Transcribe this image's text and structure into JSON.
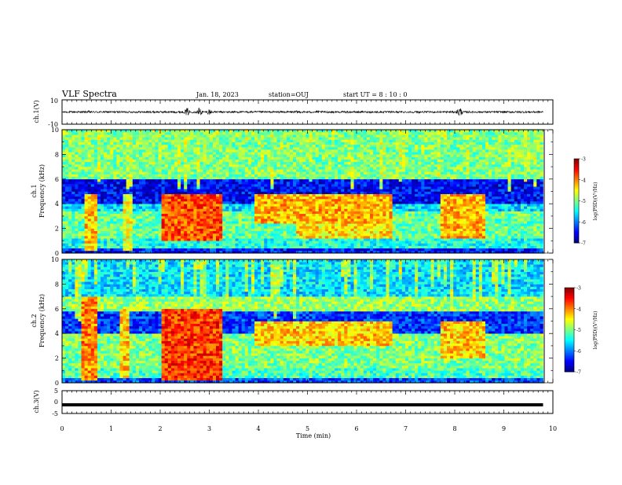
{
  "chart_data": {
    "type": "heatmap",
    "header": {
      "title": "VLF Spectra",
      "date": "Jan. 18, 2023",
      "station": "station=OUJ",
      "start_ut": "start UT =  8 : 10 : 0"
    },
    "x_axis": {
      "label": "Time  (min)",
      "min": 0,
      "max": 10,
      "ticks": [
        "0",
        "1",
        "2",
        "3",
        "4",
        "5",
        "6",
        "7",
        "8",
        "9",
        "10"
      ],
      "data_end": 9.8
    },
    "panels": [
      {
        "id": "ch1-waveform",
        "type": "line",
        "ylabel": "ch.1(V)",
        "ylim": [
          -10,
          10
        ],
        "ticks": [
          "10",
          "-10"
        ],
        "baseline": 0,
        "bursts": [
          {
            "t": 0.55,
            "amp": 1.3
          },
          {
            "t": 1.55,
            "amp": 0.7
          },
          {
            "t": 2.55,
            "amp": 3.8
          },
          {
            "t": 2.8,
            "amp": 4.8
          },
          {
            "t": 3.0,
            "amp": 3.0
          },
          {
            "t": 4.8,
            "amp": 1.6
          },
          {
            "t": 5.2,
            "amp": 1.4
          },
          {
            "t": 6.0,
            "amp": 1.1
          },
          {
            "t": 8.1,
            "amp": 5.0
          },
          {
            "t": 9.0,
            "amp": 1.2
          }
        ]
      },
      {
        "id": "ch1-spectrogram",
        "type": "heatmap",
        "label": "ch.1",
        "ylabel": "Frequency  (kHz)",
        "ylim": [
          0,
          10
        ],
        "ticks": [
          "0",
          "2",
          "4",
          "6",
          "8",
          "10"
        ],
        "colorbar": {
          "label": "log(PSD)(V²/Hz)",
          "min": -7,
          "max": -3,
          "ticks": [
            "-3",
            "-4",
            "-5",
            "-6",
            "-7"
          ]
        },
        "bands": [
          {
            "f0": 0,
            "f1": 0.5,
            "level": -6.4
          },
          {
            "f0": 0.5,
            "f1": 1.3,
            "level": -5.4
          },
          {
            "f0": 1.3,
            "f1": 3.5,
            "level": -5.1
          },
          {
            "f0": 3.5,
            "f1": 4.0,
            "level": -5.6
          },
          {
            "f0": 4.0,
            "f1": 6.0,
            "level": -6.5
          },
          {
            "f0": 6.0,
            "f1": 10.0,
            "level": -5.0
          }
        ],
        "enhanced": [
          {
            "t0": 0.45,
            "t1": 0.75,
            "f0": 0.3,
            "f1": 4.8,
            "level": -4.3
          },
          {
            "t0": 1.25,
            "t1": 1.45,
            "f0": 0.3,
            "f1": 4.8,
            "level": -4.6
          },
          {
            "t0": 2.0,
            "t1": 3.25,
            "f0": 1.0,
            "f1": 4.8,
            "level": -3.8
          },
          {
            "t0": 3.9,
            "t1": 6.7,
            "f0": 2.5,
            "f1": 4.8,
            "level": -4.2
          },
          {
            "t0": 4.8,
            "t1": 6.7,
            "f0": 1.2,
            "f1": 2.4,
            "level": -4.4
          },
          {
            "t0": 7.7,
            "t1": 8.65,
            "f0": 1.3,
            "f1": 4.8,
            "level": -4.2
          }
        ]
      },
      {
        "id": "ch2-spectrogram",
        "type": "heatmap",
        "label": "ch.2",
        "ylabel": "Frequency  (kHz)",
        "ylim": [
          0,
          10
        ],
        "ticks": [
          "0",
          "2",
          "4",
          "6",
          "8",
          "10"
        ],
        "colorbar": {
          "label": "log(PSD)(V²/Hz)",
          "min": -7,
          "max": -3,
          "ticks": [
            "-3",
            "-4",
            "-5",
            "-6",
            "-7"
          ]
        },
        "bands": [
          {
            "f0": 0,
            "f1": 0.5,
            "level": -6.2
          },
          {
            "f0": 0.5,
            "f1": 1.3,
            "level": -5.2
          },
          {
            "f0": 1.3,
            "f1": 4.0,
            "level": -5.0
          },
          {
            "f0": 4.0,
            "f1": 5.8,
            "level": -6.3
          },
          {
            "f0": 5.8,
            "f1": 7.0,
            "level": -4.9
          },
          {
            "f0": 7.0,
            "f1": 10.0,
            "level": -5.6
          }
        ],
        "enhanced": [
          {
            "t0": 0.4,
            "t1": 0.75,
            "f0": 0.2,
            "f1": 7.0,
            "level": -4.0
          },
          {
            "t0": 1.15,
            "t1": 1.4,
            "f0": 0.5,
            "f1": 6.0,
            "level": -4.3
          },
          {
            "t0": 2.0,
            "t1": 3.25,
            "f0": 0.2,
            "f1": 6.0,
            "level": -3.7
          },
          {
            "t0": 3.9,
            "t1": 6.7,
            "f0": 3.0,
            "f1": 5.0,
            "level": -4.3
          },
          {
            "t0": 7.7,
            "t1": 8.65,
            "f0": 2.0,
            "f1": 5.0,
            "level": -4.3
          }
        ]
      },
      {
        "id": "ch3-waveform",
        "type": "line",
        "ylabel": "ch.3(V)",
        "ylim": [
          -5,
          5
        ],
        "ticks": [
          "5",
          "0",
          "-5"
        ],
        "baseline": -1.2
      }
    ]
  }
}
